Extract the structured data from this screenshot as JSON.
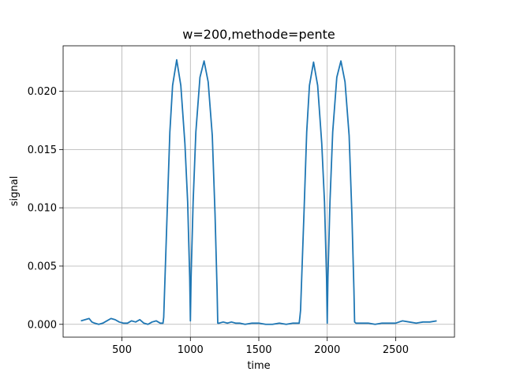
{
  "chart_data": {
    "type": "line",
    "title": "w=200,methode=pente",
    "xlabel": "time",
    "ylabel": "signal",
    "xlim": [
      70,
      2930
    ],
    "ylim": [
      -0.0011,
      0.0239
    ],
    "xticks": [
      500,
      1000,
      1500,
      2000,
      2500
    ],
    "yticks": [
      0.0,
      0.005,
      0.01,
      0.015,
      0.02
    ],
    "xtick_labels": [
      "500",
      "1000",
      "1500",
      "2000",
      "2500"
    ],
    "ytick_labels": [
      "0.000",
      "0.005",
      "0.010",
      "0.015",
      "0.020"
    ],
    "grid": true,
    "series": [
      {
        "color": "#1f77b4",
        "x": [
          200,
          230,
          260,
          280,
          300,
          330,
          360,
          390,
          420,
          450,
          480,
          510,
          540,
          570,
          600,
          630,
          660,
          690,
          720,
          750,
          780,
          800,
          805,
          830,
          850,
          870,
          900,
          930,
          960,
          980,
          995,
          1000,
          1005,
          1020,
          1040,
          1070,
          1100,
          1130,
          1160,
          1180,
          1195,
          1200,
          1210,
          1240,
          1270,
          1300,
          1330,
          1360,
          1400,
          1450,
          1500,
          1550,
          1600,
          1650,
          1700,
          1750,
          1795,
          1800,
          1805,
          1830,
          1850,
          1870,
          1900,
          1930,
          1960,
          1980,
          1995,
          2000,
          2005,
          2020,
          2040,
          2070,
          2100,
          2130,
          2160,
          2180,
          2195,
          2200,
          2210,
          2250,
          2300,
          2350,
          2400,
          2450,
          2500,
          2550,
          2600,
          2650,
          2700,
          2750,
          2800
        ],
        "y": [
          0.0003,
          0.0004,
          0.0005,
          0.0002,
          0.0001,
          0.0,
          0.0001,
          0.0003,
          0.0005,
          0.0004,
          0.0002,
          0.0001,
          0.0001,
          0.0003,
          0.0002,
          0.0004,
          0.0001,
          0.0,
          0.0002,
          0.0003,
          0.0001,
          0.0001,
          0.0006,
          0.0095,
          0.0165,
          0.0205,
          0.0227,
          0.0205,
          0.0155,
          0.0105,
          0.004,
          0.0003,
          0.004,
          0.0105,
          0.0165,
          0.0212,
          0.0226,
          0.0208,
          0.0162,
          0.0095,
          0.003,
          0.0001,
          0.0001,
          0.0002,
          0.0001,
          0.0002,
          0.0001,
          0.0001,
          0.0,
          0.0001,
          0.0001,
          0.0,
          0.0,
          0.0001,
          0.0,
          0.0001,
          0.0001,
          0.0006,
          0.0012,
          0.0095,
          0.0165,
          0.0205,
          0.0225,
          0.0205,
          0.0155,
          0.0105,
          0.004,
          0.0001,
          0.004,
          0.0105,
          0.0165,
          0.0212,
          0.0226,
          0.0208,
          0.0162,
          0.0095,
          0.003,
          0.0002,
          0.0001,
          0.0001,
          0.0001,
          0.0,
          0.0001,
          0.0001,
          0.0001,
          0.0003,
          0.0002,
          0.0001,
          0.0002,
          0.0002,
          0.0003
        ]
      }
    ]
  }
}
